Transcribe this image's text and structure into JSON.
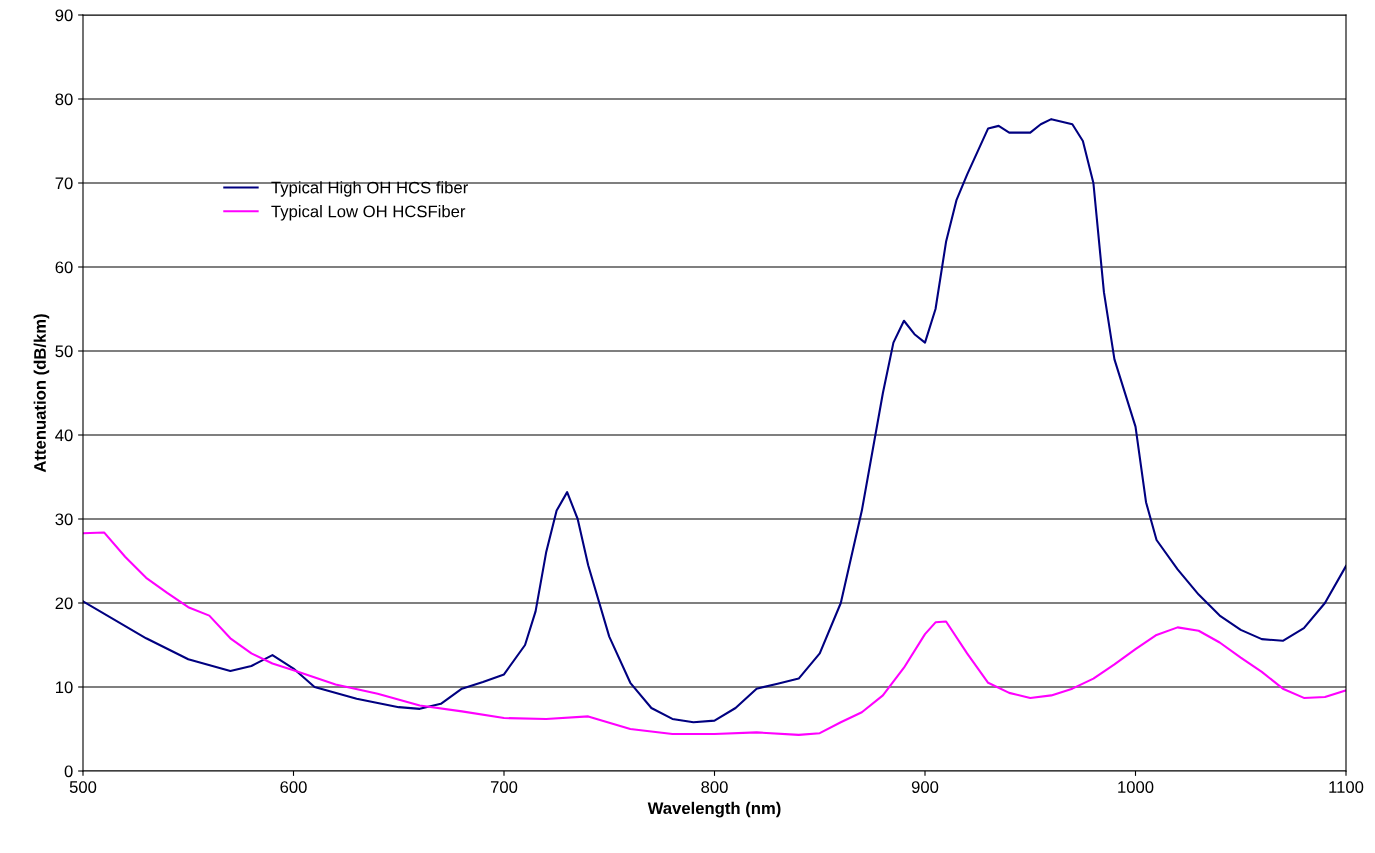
{
  "chart_data": {
    "type": "line",
    "xlabel": "Wavelength (nm)",
    "ylabel": "Attenuation (dB/km)",
    "xlim": [
      500,
      1100
    ],
    "xticks": [
      500,
      600,
      700,
      800,
      900,
      1000,
      1100
    ],
    "ylim": [
      0,
      90
    ],
    "yticks": [
      0,
      10,
      20,
      30,
      40,
      50,
      60,
      70,
      80,
      90
    ],
    "grid": "y",
    "legend": "top left",
    "marker": "none",
    "line_style": "solid",
    "series": [
      {
        "name": "Typical High OH HCS fiber",
        "color": "#000080",
        "x": [
          500,
          530,
          550,
          570,
          580,
          590,
          600,
          610,
          630,
          650,
          660,
          670,
          680,
          690,
          700,
          710,
          715,
          720,
          725,
          730,
          735,
          740,
          750,
          760,
          770,
          780,
          790,
          800,
          810,
          820,
          830,
          840,
          850,
          860,
          870,
          880,
          885,
          890,
          895,
          900,
          905,
          910,
          915,
          920,
          930,
          935,
          940,
          950,
          955,
          960,
          970,
          975,
          980,
          985,
          990,
          1000,
          1005,
          1010,
          1020,
          1030,
          1040,
          1050,
          1060,
          1070,
          1080,
          1090,
          1100
        ],
        "values": [
          20.2,
          15.8,
          13.3,
          11.9,
          12.5,
          13.8,
          12.2,
          10.0,
          8.6,
          7.6,
          7.4,
          8.0,
          9.8,
          10.6,
          11.5,
          15,
          19,
          26,
          31,
          33.2,
          30,
          24.5,
          16,
          10.5,
          7.5,
          6.2,
          5.8,
          6.0,
          7.5,
          9.8,
          10.4,
          11.0,
          14,
          20,
          31,
          45,
          51,
          53.6,
          52,
          51,
          55,
          63,
          68,
          71,
          76.5,
          76.8,
          76,
          76,
          77,
          77.6,
          77,
          75,
          70,
          57,
          49,
          41,
          32,
          27.5,
          24,
          21,
          18.5,
          16.8,
          15.7,
          15.5,
          17,
          20,
          24.4
        ]
      },
      {
        "name": "Typical Low OH HCSFiber",
        "color": "#ff00ff",
        "x": [
          500,
          510,
          520,
          530,
          540,
          550,
          560,
          570,
          580,
          590,
          600,
          620,
          640,
          660,
          680,
          700,
          720,
          740,
          760,
          780,
          800,
          820,
          840,
          850,
          860,
          870,
          880,
          890,
          900,
          905,
          910,
          920,
          930,
          940,
          950,
          960,
          970,
          980,
          990,
          1000,
          1010,
          1020,
          1030,
          1040,
          1050,
          1060,
          1070,
          1080,
          1090,
          1100
        ],
        "values": [
          28.3,
          28.4,
          25.5,
          23,
          21.2,
          19.5,
          18.5,
          15.8,
          14.0,
          12.8,
          12.0,
          10.3,
          9.2,
          7.8,
          7.1,
          6.3,
          6.2,
          6.5,
          5.0,
          4.4,
          4.4,
          4.6,
          4.3,
          4.5,
          5.8,
          7.0,
          9.0,
          12.3,
          16.3,
          17.7,
          17.8,
          14,
          10.5,
          9.3,
          8.7,
          9.0,
          9.8,
          11,
          12.7,
          14.5,
          16.2,
          17.1,
          16.7,
          15.3,
          13.5,
          11.8,
          9.8,
          8.7,
          8.8,
          9.6
        ]
      }
    ]
  }
}
